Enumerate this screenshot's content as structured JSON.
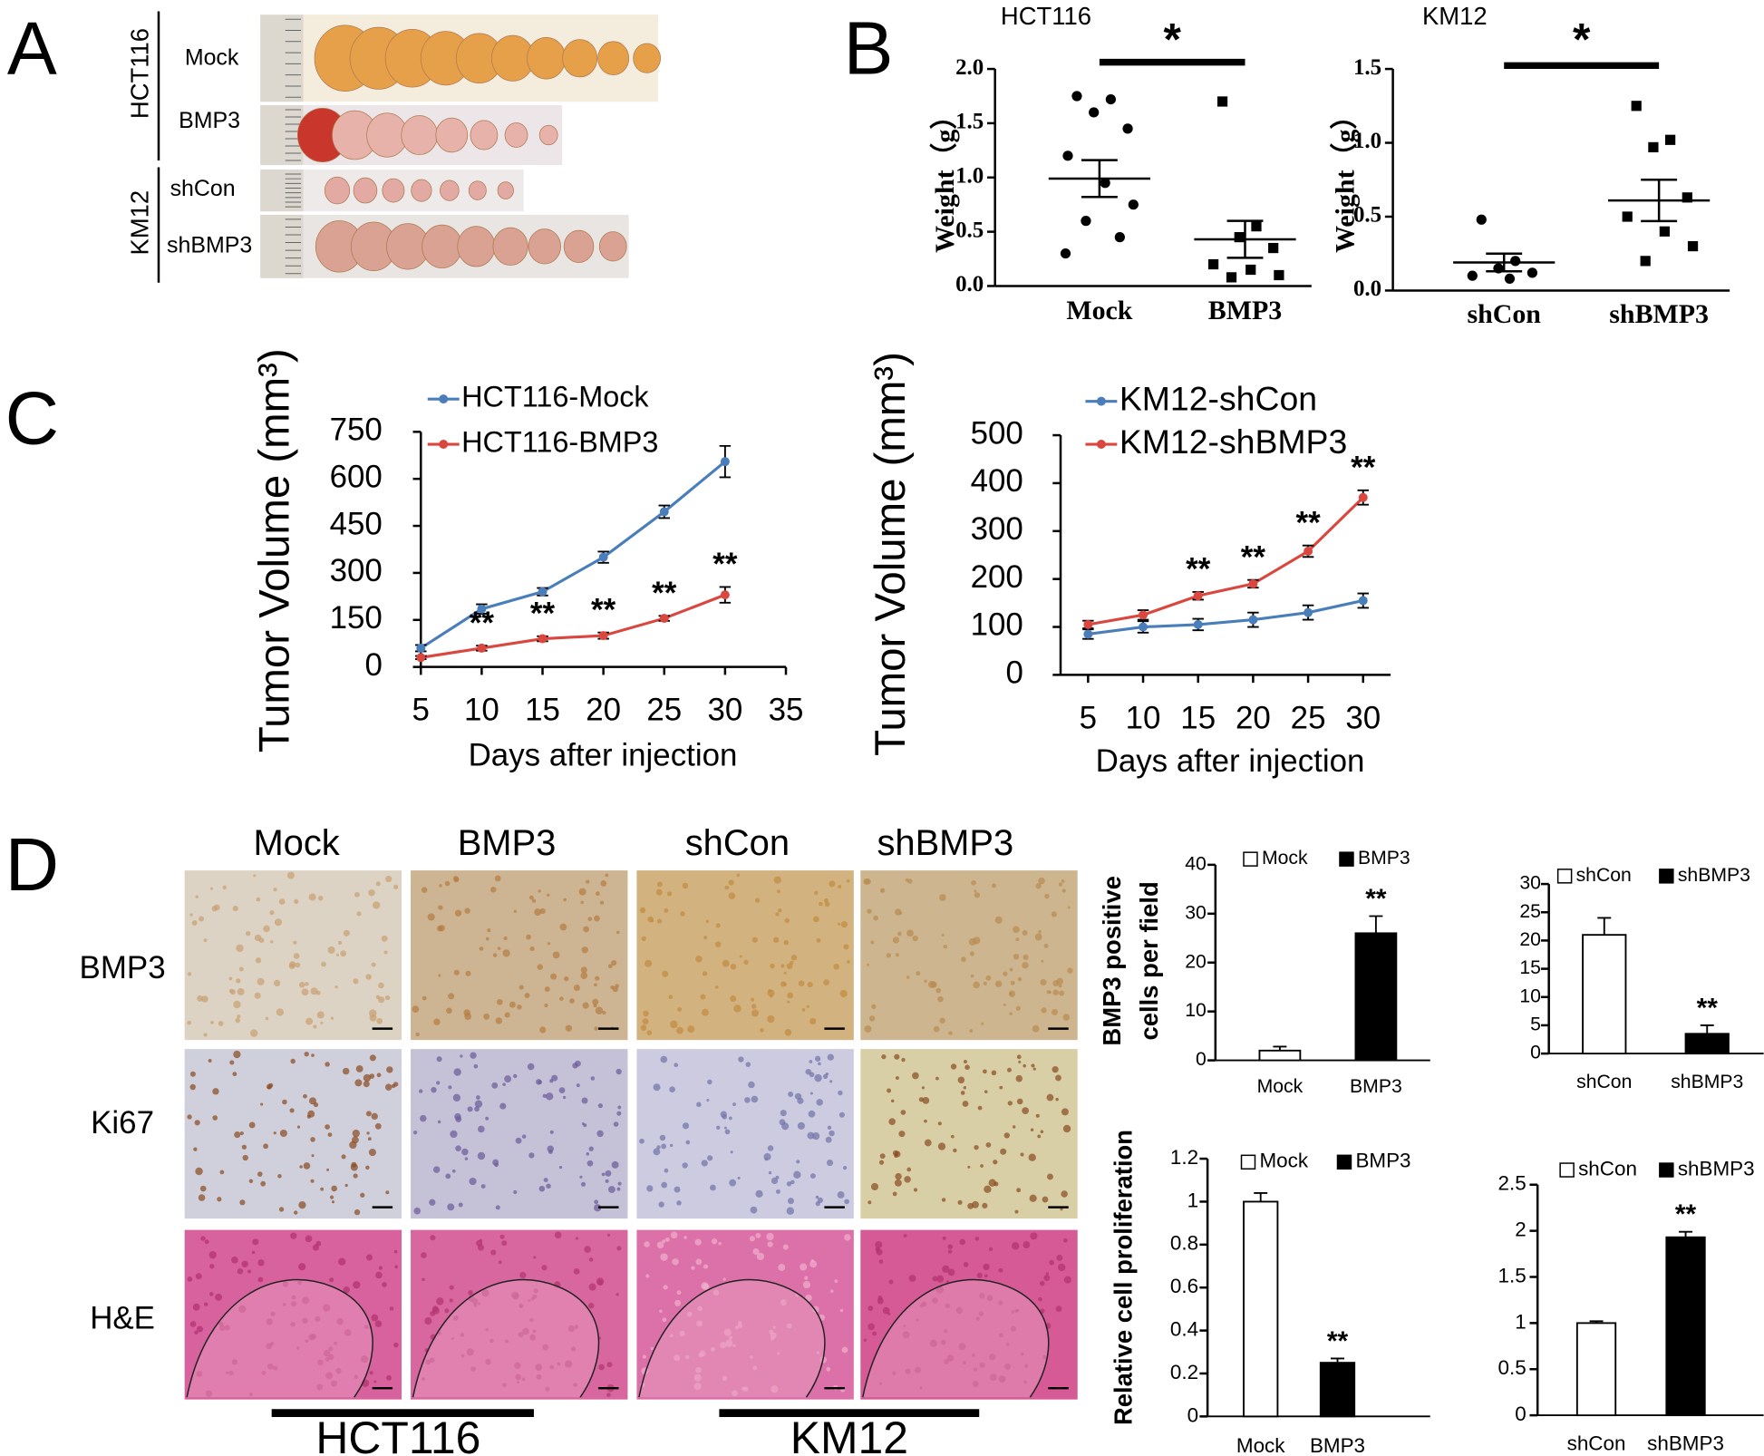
{
  "panel_labels": [
    "A",
    "B",
    "C",
    "D"
  ],
  "panel_a": {
    "groups": [
      {
        "cell_line": "HCT116",
        "rows": [
          "Mock",
          "BMP3"
        ]
      },
      {
        "cell_line": "KM12",
        "rows": [
          "shCon",
          "shBMP3"
        ]
      }
    ]
  },
  "panel_d": {
    "columns": [
      "Mock",
      "BMP3",
      "shCon",
      "shBMP3"
    ],
    "rows": [
      "BMP3",
      "Ki67",
      "H&E"
    ],
    "cell_lines": [
      "HCT116",
      "KM12"
    ]
  },
  "chart_data": [
    {
      "type": "dot",
      "title": "HCT116",
      "ylabel": "Weight（g）",
      "categories": [
        "Mock",
        "BMP3"
      ],
      "markers": [
        "circle",
        "square"
      ],
      "points": [
        [
          1.75,
          1.72,
          1.6,
          1.45,
          1.2,
          0.95,
          0.75,
          0.6,
          0.45,
          0.3
        ],
        [
          1.7,
          0.55,
          0.45,
          0.35,
          0.2,
          0.15,
          0.1,
          0.08
        ]
      ],
      "means": [
        0.99,
        0.43
      ],
      "sems": [
        0.17,
        0.17
      ],
      "significance": "*",
      "color": "#000000",
      "ylim": [
        0,
        2
      ],
      "yticks": [
        {
          "value": 0,
          "label": "0.0"
        },
        0.5,
        {
          "value": 1,
          "label": "1.0"
        },
        1.5,
        {
          "value": 2,
          "label": "2.0"
        }
      ]
    },
    {
      "type": "dot",
      "title": "KM12",
      "ylabel": "Weight（g）",
      "categories": [
        "shCon",
        "shBMP3"
      ],
      "markers": [
        "circle",
        "square"
      ],
      "points": [
        [
          0.48,
          0.2,
          0.15,
          0.12,
          0.1,
          0.08
        ],
        [
          1.25,
          1.02,
          0.97,
          0.63,
          0.5,
          0.4,
          0.3,
          0.2
        ]
      ],
      "means": [
        0.19,
        0.61
      ],
      "sems": [
        0.06,
        0.14
      ],
      "significance": "*",
      "color": "#000000",
      "ylim": [
        0,
        1.5
      ],
      "yticks": [
        {
          "value": 0,
          "label": "0.0"
        },
        0.5,
        {
          "value": 1,
          "label": "1.0"
        },
        1.5
      ]
    },
    {
      "type": "line",
      "xlabel": "Days after injection",
      "ylabel": "Tumor Volume (mm³)",
      "legend": "upper left",
      "x": [
        5,
        10,
        15,
        20,
        25,
        30
      ],
      "series": [
        {
          "name": "HCT116-Mock",
          "color": "#4a7ebb",
          "values": [
            60,
            185,
            240,
            350,
            495,
            655
          ],
          "errors": [
            10,
            15,
            12,
            18,
            20,
            50
          ]
        },
        {
          "name": "HCT116-BMP3",
          "color": "#d9473f",
          "values": [
            30,
            60,
            90,
            100,
            155,
            230
          ],
          "errors": [
            5,
            8,
            8,
            10,
            8,
            25
          ],
          "significance": [
            null,
            "**",
            "**",
            "**",
            "**",
            "**"
          ]
        }
      ],
      "xlim": [
        5,
        35
      ],
      "xticks": [
        5,
        10,
        15,
        20,
        25,
        30,
        35
      ],
      "ylim": [
        0,
        750
      ],
      "yticks": [
        0,
        150,
        300,
        450,
        600,
        750
      ]
    },
    {
      "type": "line",
      "xlabel": "Days  after injection",
      "ylabel": "Tumor Volume (mm³)",
      "legend": "upper left",
      "x": [
        5,
        10,
        15,
        20,
        25,
        30
      ],
      "series": [
        {
          "name": "KM12-shCon",
          "color": "#4a7ebb",
          "values": [
            85,
            100,
            105,
            115,
            130,
            155
          ],
          "errors": [
            10,
            12,
            12,
            15,
            15,
            15
          ]
        },
        {
          "name": "KM12-shBMP3",
          "color": "#d9473f",
          "values": [
            105,
            125,
            165,
            190,
            258,
            370
          ],
          "errors": [
            8,
            10,
            8,
            8,
            12,
            15
          ],
          "significance": [
            null,
            null,
            "**",
            "**",
            "**",
            "**"
          ]
        }
      ],
      "xlim": [
        2.5,
        32.5
      ],
      "xticks": [
        5,
        10,
        15,
        20,
        25,
        30
      ],
      "ylim": [
        0,
        500
      ],
      "yticks": [
        0,
        100,
        200,
        300,
        400,
        500
      ]
    },
    {
      "type": "bar",
      "ylabel": [
        "BMP3 positive",
        "cells per field"
      ],
      "categories": [
        "Mock",
        "BMP3"
      ],
      "series": [
        {
          "name": "Mock",
          "color": "#ffffff",
          "values": [
            2,
            null
          ],
          "errors": [
            0.8,
            null
          ]
        },
        {
          "name": "BMP3",
          "color": "#000000",
          "values": [
            null,
            26
          ],
          "errors": [
            null,
            3.5
          ],
          "significance": [
            null,
            "**"
          ]
        }
      ],
      "ylim": [
        0,
        40
      ],
      "yticks": [
        0,
        10,
        20,
        30,
        40
      ],
      "legend": "top"
    },
    {
      "type": "bar",
      "categories": [
        "shCon",
        "shBMP3"
      ],
      "series": [
        {
          "name": "shCon",
          "color": "#ffffff",
          "values": [
            21,
            null
          ],
          "errors": [
            3,
            null
          ]
        },
        {
          "name": "shBMP3",
          "color": "#000000",
          "values": [
            null,
            3.5
          ],
          "errors": [
            null,
            1.5
          ],
          "significance": [
            null,
            "**"
          ]
        }
      ],
      "ylim": [
        0,
        30
      ],
      "yticks": [
        0,
        5,
        10,
        15,
        20,
        25,
        30
      ],
      "legend": "top"
    },
    {
      "type": "bar",
      "ylabel": [
        "Relative cell proliferation"
      ],
      "categories": [
        "Mock",
        "BMP3"
      ],
      "series": [
        {
          "name": "Mock",
          "color": "#ffffff",
          "values": [
            1,
            null
          ],
          "errors": [
            0.04,
            null
          ]
        },
        {
          "name": "BMP3",
          "color": "#000000",
          "values": [
            null,
            0.25
          ],
          "errors": [
            null,
            0.02
          ],
          "significance": [
            null,
            "**"
          ]
        }
      ],
      "ylim": [
        0,
        1.2
      ],
      "yticks": [
        0,
        0.2,
        0.4,
        0.6,
        0.8,
        1,
        1.2
      ],
      "legend": "top"
    },
    {
      "type": "bar",
      "categories": [
        "shCon",
        "shBMP3"
      ],
      "series": [
        {
          "name": "shCon",
          "color": "#ffffff",
          "values": [
            1,
            null
          ],
          "errors": [
            0.02,
            null
          ]
        },
        {
          "name": "shBMP3",
          "color": "#000000",
          "values": [
            null,
            1.93
          ],
          "errors": [
            null,
            0.06
          ],
          "significance": [
            null,
            "**"
          ]
        }
      ],
      "ylim": [
        0,
        2.5
      ],
      "yticks": [
        0,
        0.5,
        1,
        1.5,
        2,
        2.5
      ],
      "legend": "top"
    }
  ]
}
